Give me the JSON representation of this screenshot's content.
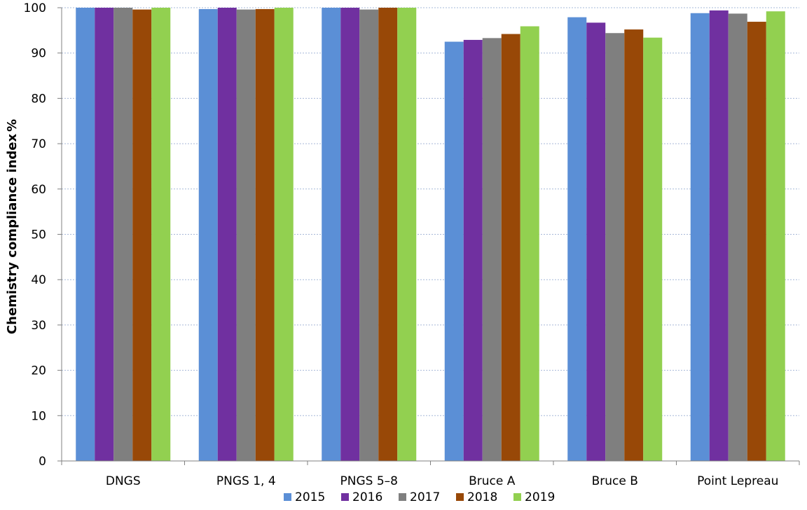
{
  "chart_data": {
    "type": "bar",
    "title": "",
    "xlabel": "",
    "ylabel": "Chemistry compliance index",
    "ylabel_unit": "%",
    "ylim": [
      0,
      100
    ],
    "yticks": [
      0,
      10,
      20,
      30,
      40,
      50,
      60,
      70,
      80,
      90,
      100
    ],
    "grid": "horizontal dotted",
    "legend_position": "bottom",
    "categories": [
      "DNGS",
      "PNGS 1, 4",
      "PNGS 5–8",
      "Bruce A",
      "Bruce B",
      "Point Lepreau"
    ],
    "series": [
      {
        "name": "2015",
        "color": "#5b8fd6",
        "values": [
          100,
          99.7,
          100,
          92.5,
          97.9,
          98.8
        ]
      },
      {
        "name": "2016",
        "color": "#7030a0",
        "values": [
          100,
          100,
          100,
          92.9,
          96.7,
          99.4
        ]
      },
      {
        "name": "2017",
        "color": "#7f7f7f",
        "values": [
          100,
          99.6,
          99.6,
          93.3,
          94.4,
          98.7
        ]
      },
      {
        "name": "2018",
        "color": "#984807",
        "values": [
          99.6,
          99.7,
          100,
          94.2,
          95.2,
          96.9
        ]
      },
      {
        "name": "2019",
        "color": "#92d050",
        "values": [
          100,
          100,
          100,
          95.9,
          93.4,
          99.2
        ]
      }
    ]
  }
}
